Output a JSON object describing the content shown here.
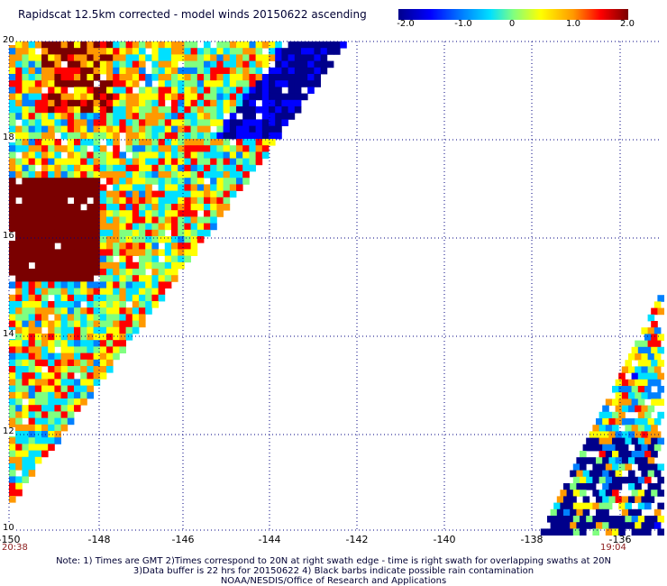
{
  "title": "Rapidscat 12.5km corrected - model winds 20150622 ascending",
  "colorbar": {
    "ticks": [
      {
        "label": "-2.0",
        "value": -2.0
      },
      {
        "label": "-1.0",
        "value": -1.0
      },
      {
        "label": "0",
        "value": 0
      },
      {
        "label": "1.0",
        "value": 1.0
      },
      {
        "label": "2.0",
        "value": 2.0
      }
    ],
    "range": [
      -2.0,
      2.0
    ],
    "colors": [
      "#00008b",
      "#0000ff",
      "#0080ff",
      "#00e0ff",
      "#80ff80",
      "#ffff00",
      "#ff9900",
      "#ff0000",
      "#7a0000"
    ]
  },
  "map": {
    "lon_range": [
      -150,
      -135
    ],
    "lat_range": [
      10,
      20
    ],
    "lat_labels": [
      "20",
      "18",
      "16",
      "14",
      "12",
      "10"
    ],
    "lon_labels": [
      "-150",
      "-148",
      "-146",
      "-144",
      "-142",
      "-140",
      "-138",
      "-136"
    ],
    "grid": "dotted blue",
    "time_left": "20:38",
    "time_right": "19:04"
  },
  "notes": [
    "Note: 1) Times are GMT 2)Times correspond to 20N at right swath edge - time is right swath for overlapping swaths at 20N",
    "3)Data buffer is 22 hrs for 20150622 4) Black barbs indicate possible rain contamination",
    "NOAA/NESDIS/Office of Research and Applications"
  ]
}
